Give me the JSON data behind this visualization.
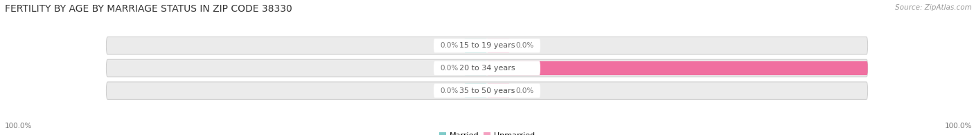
{
  "title": "FERTILITY BY AGE BY MARRIAGE STATUS IN ZIP CODE 38330",
  "source": "Source: ZipAtlas.com",
  "categories": [
    "15 to 19 years",
    "20 to 34 years",
    "35 to 50 years"
  ],
  "married_values": [
    0.0,
    0.0,
    0.0
  ],
  "unmarried_values": [
    0.0,
    100.0,
    0.0
  ],
  "married_color": "#7ecac8",
  "unmarried_color": "#f06fa0",
  "unmarried_color_light": "#f4a0c0",
  "bar_bg_color": "#ebebeb",
  "bar_border_color": "#cccccc",
  "center_label_bg": "#ffffff",
  "title_fontsize": 10,
  "source_fontsize": 7.5,
  "label_fontsize": 7.5,
  "category_fontsize": 8,
  "legend_fontsize": 8,
  "left_label": "100.0%",
  "right_label": "100.0%",
  "background_color": "#ffffff",
  "stub_size": 6
}
